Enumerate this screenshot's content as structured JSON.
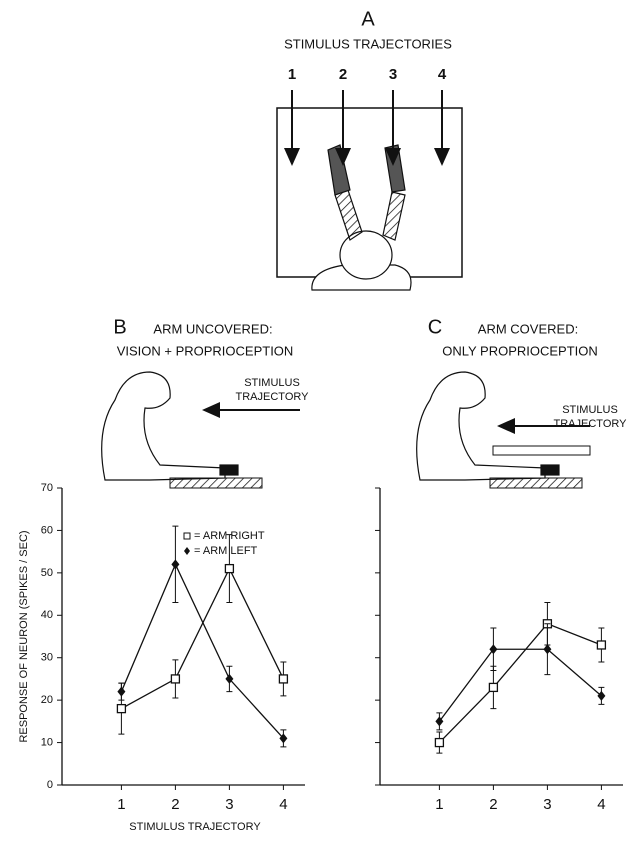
{
  "panel_a": {
    "letter": "A",
    "title": "STIMULUS TRAJECTORIES",
    "trajectories": [
      "1",
      "2",
      "3",
      "4"
    ]
  },
  "chart_data": [
    {
      "type": "line",
      "panel": "B",
      "title_lines": [
        "ARM UNCOVERED:",
        "VISION + PROPRIOCEPTION"
      ],
      "inset_label": [
        "STIMULUS",
        "TRAJECTORY"
      ],
      "arm_covered": false,
      "y_label": "RESPONSE OF NEURON (SPIKES / SEC)",
      "x_label": "STIMULUS TRAJECTORY",
      "x": [
        1,
        2,
        3,
        4
      ],
      "xlim": [
        -0.1,
        4.4
      ],
      "xticks": [
        1,
        2,
        3,
        4
      ],
      "ylim": [
        0,
        70
      ],
      "yticks": [
        0,
        10,
        20,
        30,
        40,
        50,
        60,
        70
      ],
      "tick_labels": true,
      "legend": "upper right",
      "color": "#111",
      "series": [
        {
          "name": "= ARM RIGHT",
          "marker": "square",
          "values": [
            18,
            25,
            51,
            25
          ],
          "errors": [
            6,
            4.5,
            8,
            4
          ]
        },
        {
          "name": "= ARM LEFT",
          "marker": "diamond",
          "values": [
            22,
            52,
            25,
            11
          ],
          "errors": [
            2,
            9,
            3,
            2
          ]
        }
      ]
    },
    {
      "type": "line",
      "panel": "C",
      "title_lines": [
        "ARM COVERED:",
        "ONLY PROPRIOCEPTION"
      ],
      "inset_label": [
        "STIMULUS",
        "TRAJECTORY"
      ],
      "arm_covered": true,
      "x": [
        1,
        2,
        3,
        4
      ],
      "xlim": [
        -0.1,
        4.4
      ],
      "xticks": [
        1,
        2,
        3,
        4
      ],
      "ylim": [
        0,
        70
      ],
      "yticks": [
        0,
        10,
        20,
        30,
        40,
        50,
        60,
        70
      ],
      "tick_labels": false,
      "color": "#111",
      "series": [
        {
          "marker": "square",
          "values": [
            10,
            23,
            38,
            33
          ],
          "errors": [
            2.5,
            5,
            5,
            4
          ]
        },
        {
          "marker": "diamond",
          "values": [
            15,
            32,
            32,
            21
          ],
          "errors": [
            2,
            5,
            6,
            2
          ]
        }
      ]
    }
  ]
}
